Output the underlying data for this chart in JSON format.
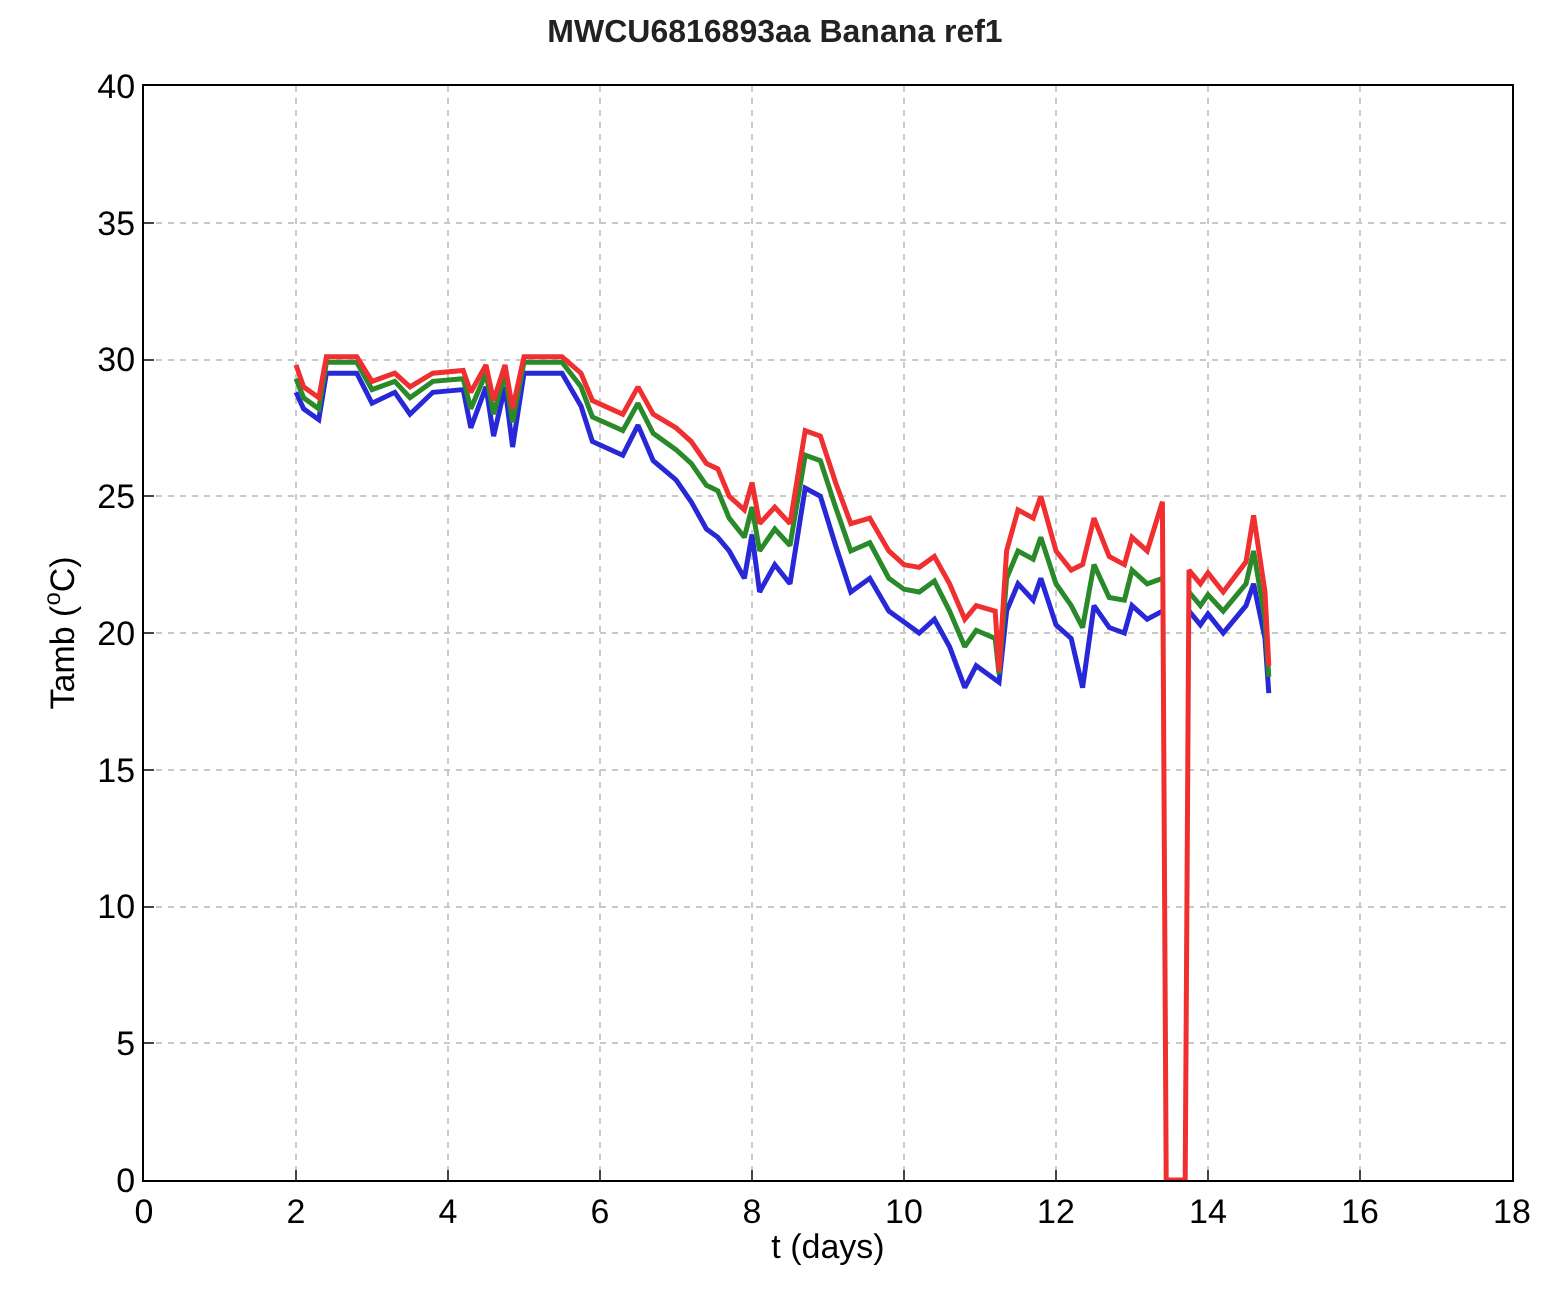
{
  "chart_data": {
    "type": "line",
    "title": "MWCU6816893aa Banana ref1",
    "xlabel": "t (days)",
    "ylabel": "Tamb ($^{o}$C)",
    "x": [
      2.0,
      2.1,
      2.3,
      2.4,
      2.8,
      3.0,
      3.3,
      3.5,
      3.8,
      4.2,
      4.3,
      4.5,
      4.6,
      4.75,
      4.85,
      5.0,
      5.5,
      5.75,
      5.9,
      6.3,
      6.5,
      6.7,
      7.0,
      7.2,
      7.4,
      7.55,
      7.7,
      7.9,
      8.0,
      8.1,
      8.3,
      8.5,
      8.7,
      8.9,
      9.1,
      9.3,
      9.55,
      9.8,
      10.0,
      10.2,
      10.4,
      10.6,
      10.8,
      10.95,
      11.2,
      11.25,
      11.35,
      11.5,
      11.7,
      11.8,
      12.0,
      12.2,
      12.35,
      12.5,
      12.7,
      12.9,
      13.0,
      13.2,
      13.4,
      13.45,
      13.7,
      13.75,
      13.9,
      14.0,
      14.2,
      14.5,
      14.6,
      14.75,
      14.8
    ],
    "series": [
      {
        "color": "#2828d8",
        "values": [
          28.8,
          28.2,
          27.8,
          29.5,
          29.5,
          28.4,
          28.8,
          28.0,
          28.8,
          28.9,
          27.5,
          29.0,
          27.2,
          29.0,
          26.8,
          29.5,
          29.5,
          28.3,
          27.0,
          26.5,
          27.6,
          26.3,
          25.6,
          24.8,
          23.8,
          23.5,
          23.0,
          22.0,
          23.6,
          21.5,
          22.5,
          21.8,
          25.3,
          25.0,
          23.2,
          21.5,
          22.0,
          20.8,
          20.4,
          20.0,
          20.5,
          19.5,
          18.0,
          18.8,
          18.3,
          18.2,
          20.8,
          21.8,
          21.2,
          22.0,
          20.3,
          19.8,
          18.0,
          21.0,
          20.2,
          20.0,
          21.0,
          20.5,
          20.8,
          null,
          null,
          20.8,
          20.3,
          20.7,
          20.0,
          21.0,
          21.8,
          19.8,
          17.8
        ]
      },
      {
        "color": "#2a8a2a",
        "values": [
          29.3,
          28.6,
          28.2,
          29.9,
          29.9,
          28.9,
          29.2,
          28.6,
          29.2,
          29.3,
          28.2,
          29.5,
          28.0,
          29.5,
          27.7,
          29.9,
          29.9,
          29.0,
          27.9,
          27.4,
          28.4,
          27.3,
          26.7,
          26.2,
          25.4,
          25.2,
          24.2,
          23.5,
          24.6,
          23.0,
          23.8,
          23.2,
          26.5,
          26.3,
          24.6,
          23.0,
          23.3,
          22.0,
          21.6,
          21.5,
          21.9,
          20.8,
          19.5,
          20.1,
          19.8,
          18.5,
          22.0,
          23.0,
          22.7,
          23.5,
          21.8,
          21.0,
          20.2,
          22.5,
          21.3,
          21.2,
          22.3,
          21.8,
          22.0,
          null,
          null,
          21.5,
          21.0,
          21.4,
          20.8,
          21.8,
          23.0,
          20.5,
          18.4
        ]
      },
      {
        "color": "#f03030",
        "values": [
          29.8,
          29.0,
          28.6,
          30.1,
          30.1,
          29.2,
          29.5,
          29.0,
          29.5,
          29.6,
          28.8,
          29.8,
          28.5,
          29.8,
          28.2,
          30.1,
          30.1,
          29.5,
          28.5,
          28.0,
          29.0,
          28.0,
          27.5,
          27.0,
          26.2,
          26.0,
          25.0,
          24.5,
          25.5,
          24.0,
          24.6,
          24.0,
          27.4,
          27.2,
          25.5,
          24.0,
          24.2,
          23.0,
          22.5,
          22.4,
          22.8,
          21.8,
          20.5,
          21.0,
          20.8,
          18.6,
          23.0,
          24.5,
          24.2,
          25.0,
          23.0,
          22.3,
          22.5,
          24.2,
          22.8,
          22.5,
          23.5,
          23.0,
          24.8,
          0,
          0,
          22.3,
          21.8,
          22.2,
          21.5,
          22.6,
          24.3,
          21.5,
          18.8
        ]
      }
    ],
    "xlim": [
      0,
      18
    ],
    "xticks": [
      0,
      2,
      4,
      6,
      8,
      10,
      12,
      14,
      16,
      18
    ],
    "ylim": [
      0,
      40
    ],
    "yticks": [
      0,
      5,
      10,
      15,
      20,
      25,
      30,
      35,
      40
    ],
    "grid": true,
    "line_style": "solid"
  }
}
